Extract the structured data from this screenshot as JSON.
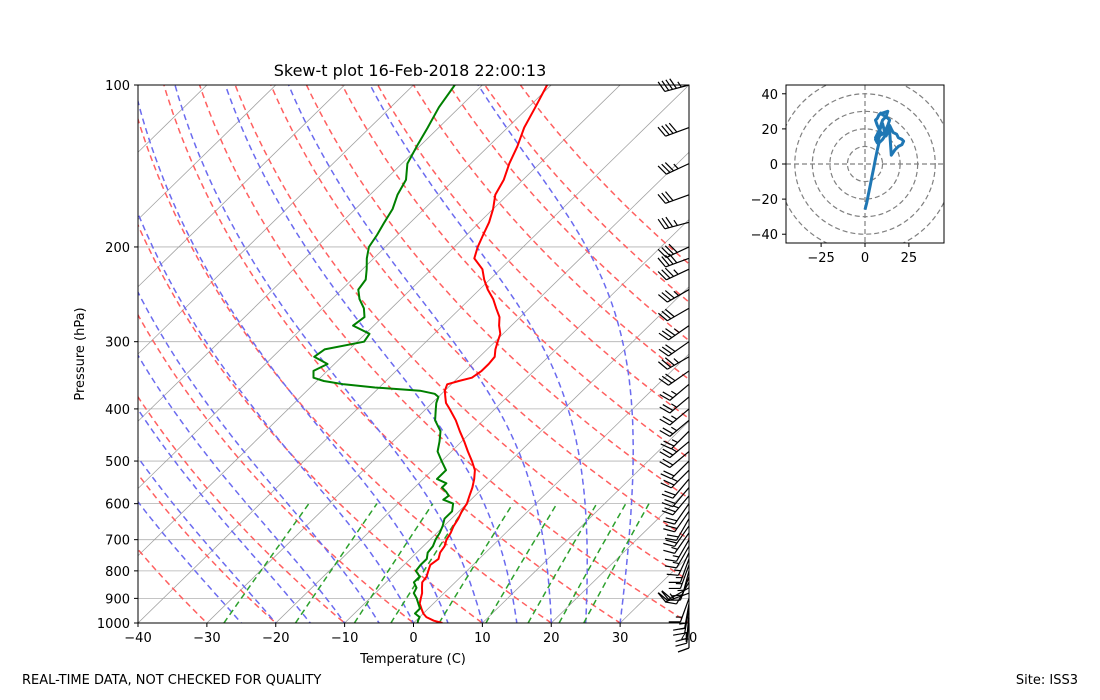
{
  "colors": {
    "temperature": "#ff0000",
    "dewpoint": "#008000",
    "dry_adiabat": "#ff6060",
    "moist_adiabat": "#6b6bef",
    "mixing_ratio": "#2ca02c",
    "hodograph": "#1f77b4",
    "grid": "#b0b0b0",
    "isotherm": "#a0a0a0"
  },
  "footer": {
    "left": "REAL-TIME DATA, NOT CHECKED FOR QUALITY",
    "right": "Site: ISS3"
  },
  "chart_data": [
    {
      "type": "line",
      "name": "skew-t",
      "title": "Skew-t plot 16-Feb-2018 22:00:13",
      "xlabel": "Temperature (C)",
      "ylabel": "Pressure (hPa)",
      "xlim": [
        -40,
        40
      ],
      "ylim": [
        1000,
        100
      ],
      "y_scale": "log",
      "x_ticks": [
        -40,
        -30,
        -20,
        -10,
        0,
        10,
        20,
        30,
        40
      ],
      "x_tick_labels": [
        "−40",
        "−30",
        "−20",
        "−10",
        "0",
        "10",
        "20",
        "30",
        "40"
      ],
      "y_ticks": [
        1000,
        900,
        800,
        700,
        600,
        500,
        400,
        300,
        200,
        100
      ],
      "y_tick_labels": [
        "1000",
        "900",
        "800",
        "700",
        "600",
        "500",
        "400",
        "300",
        "200",
        "100"
      ],
      "grid": true,
      "series": [
        {
          "name": "Temperature",
          "pressure": [
            1000,
            990,
            975,
            960,
            940,
            920,
            900,
            880,
            860,
            840,
            820,
            800,
            780,
            760,
            740,
            720,
            700,
            680,
            660,
            640,
            620,
            600,
            580,
            560,
            540,
            520,
            500,
            480,
            460,
            440,
            420,
            400,
            390,
            380,
            370,
            360,
            355,
            350,
            340,
            330,
            320,
            310,
            300,
            290,
            280,
            270,
            260,
            250,
            240,
            230,
            220,
            210,
            200,
            190,
            180,
            170,
            160,
            150,
            140,
            130,
            120,
            110,
            100
          ],
          "values": [
            4.2,
            2.6,
            1.0,
            0.0,
            -1.0,
            -2.0,
            -2.6,
            -3.2,
            -4.0,
            -4.8,
            -5.0,
            -5.6,
            -6.2,
            -5.9,
            -6.6,
            -6.9,
            -7.6,
            -8.0,
            -8.6,
            -9.0,
            -9.6,
            -10.0,
            -10.8,
            -11.6,
            -12.6,
            -13.8,
            -15.6,
            -17.6,
            -19.6,
            -21.8,
            -24.0,
            -26.6,
            -28.0,
            -29.0,
            -30.0,
            -30.6,
            -29.4,
            -28.0,
            -27.6,
            -27.6,
            -27.8,
            -28.8,
            -29.6,
            -30.4,
            -31.8,
            -33.0,
            -34.8,
            -36.6,
            -38.8,
            -40.8,
            -42.6,
            -45.4,
            -46.6,
            -47.6,
            -48.6,
            -50.0,
            -51.8,
            -52.8,
            -54.4,
            -55.8,
            -57.6,
            -59.0,
            -60.6
          ]
        },
        {
          "name": "Dewpoint",
          "pressure": [
            1000,
            990,
            975,
            960,
            940,
            920,
            900,
            880,
            860,
            840,
            820,
            800,
            780,
            760,
            740,
            720,
            700,
            680,
            660,
            640,
            620,
            600,
            590,
            580,
            570,
            560,
            550,
            540,
            520,
            500,
            480,
            460,
            440,
            420,
            400,
            390,
            380,
            375,
            370,
            365,
            360,
            355,
            350,
            340,
            330,
            320,
            310,
            300,
            290,
            280,
            270,
            260,
            250,
            240,
            230,
            220,
            210,
            200,
            190,
            180,
            170,
            160,
            150,
            140,
            130,
            120,
            110,
            100
          ],
          "values": [
            0.6,
            0.3,
            0.0,
            -1.2,
            -1.2,
            -2.2,
            -3.2,
            -4.4,
            -4.8,
            -6.0,
            -6.0,
            -7.4,
            -7.6,
            -7.6,
            -8.4,
            -8.6,
            -9.2,
            -9.6,
            -10.2,
            -11.0,
            -11.0,
            -12.0,
            -14.0,
            -13.8,
            -14.8,
            -16.0,
            -16.0,
            -18.0,
            -18.0,
            -20.0,
            -22.0,
            -23.2,
            -24.6,
            -27.0,
            -28.6,
            -29.4,
            -30.0,
            -31.0,
            -33.6,
            -40.6,
            -45.6,
            -49.0,
            -51.0,
            -52.0,
            -51.0,
            -54.0,
            -53.6,
            -49.0,
            -49.4,
            -53.0,
            -52.6,
            -54.0,
            -56.0,
            -57.6,
            -58.0,
            -59.4,
            -61.0,
            -62.4,
            -63.0,
            -63.8,
            -64.6,
            -66.0,
            -67.0,
            -69.2,
            -70.4,
            -71.6,
            -73.0,
            -74.0
          ]
        }
      ],
      "reference_lines": {
        "isotherms": [
          -120,
          -110,
          -100,
          -90,
          -80,
          -70,
          -60,
          -50,
          -40,
          -30,
          -20,
          -10,
          0,
          10,
          20,
          30,
          40
        ],
        "dry_adiabats_C": [
          -30,
          -20,
          -10,
          0,
          10,
          20,
          30,
          40,
          50,
          60,
          70,
          80,
          90,
          100,
          110,
          120,
          130
        ],
        "moist_adiabats_C": [
          -25,
          -20,
          -15,
          -10,
          -5,
          0,
          5,
          10,
          15,
          20,
          25,
          30
        ],
        "mixing_ratios_gkg": [
          0.4,
          1,
          2,
          3,
          5,
          8,
          12,
          16,
          20
        ],
        "mixing_ratio_top_hPa": 600
      },
      "wind_barbs": {
        "pressure": [
          100,
          120,
          140,
          160,
          180,
          200,
          210,
          220,
          240,
          260,
          280,
          300,
          320,
          340,
          360,
          380,
          400,
          420,
          440,
          460,
          480,
          500,
          520,
          540,
          560,
          580,
          600,
          620,
          640,
          660,
          680,
          700,
          720,
          740,
          760,
          780,
          800,
          820,
          840,
          860,
          880,
          900,
          920,
          940,
          960,
          980,
          1000
        ],
        "speed_kt": [
          45,
          40,
          35,
          30,
          35,
          40,
          40,
          35,
          35,
          30,
          35,
          30,
          35,
          30,
          25,
          25,
          25,
          25,
          25,
          25,
          20,
          20,
          25,
          20,
          20,
          25,
          20,
          20,
          20,
          20,
          15,
          15,
          15,
          15,
          15,
          15,
          15,
          10,
          10,
          20,
          25,
          15,
          15,
          15,
          10,
          10,
          10
        ],
        "direction_deg": [
          255,
          250,
          245,
          250,
          255,
          245,
          250,
          245,
          240,
          240,
          235,
          235,
          240,
          235,
          230,
          230,
          230,
          230,
          225,
          230,
          230,
          225,
          225,
          220,
          220,
          220,
          215,
          215,
          210,
          215,
          215,
          210,
          210,
          205,
          200,
          200,
          195,
          200,
          210,
          240,
          250,
          200,
          190,
          190,
          185,
          185,
          180
        ]
      }
    },
    {
      "type": "line",
      "name": "hodograph",
      "xlim": [
        -45,
        45
      ],
      "ylim": [
        -45,
        45
      ],
      "x_ticks": [
        -25,
        0,
        25
      ],
      "x_tick_labels": [
        "−25",
        "0",
        "25"
      ],
      "y_ticks": [
        -40,
        -20,
        0,
        20,
        40
      ],
      "y_tick_labels": [
        "−40",
        "−20",
        "0",
        "20",
        "40"
      ],
      "rings": [
        10,
        20,
        30,
        40,
        50
      ],
      "u": [
        0,
        1,
        2,
        3,
        4,
        5,
        6,
        7,
        8,
        10,
        12,
        14,
        15,
        17,
        19,
        21,
        22,
        21,
        19,
        18,
        16,
        15,
        14,
        13,
        12,
        11,
        10,
        9,
        8,
        7,
        6,
        7,
        8,
        9,
        11,
        12,
        13,
        14,
        12,
        10,
        9,
        8,
        7,
        6,
        7,
        8,
        9,
        10,
        8,
        6,
        7,
        8,
        9,
        10,
        12,
        13,
        10,
        8,
        7
      ],
      "v": [
        -26,
        -22,
        -17,
        -12,
        -7,
        -2,
        3,
        8,
        12,
        14,
        17,
        19,
        5,
        8,
        10,
        11,
        13,
        14,
        15,
        17,
        18,
        20,
        22,
        18,
        16,
        19,
        23,
        21,
        18,
        16,
        14,
        12,
        15,
        18,
        17,
        20,
        22,
        25,
        27,
        28,
        29,
        28,
        26,
        25,
        22,
        20,
        18,
        17,
        16,
        15,
        17,
        19,
        22,
        25,
        27,
        30,
        29,
        28,
        26
      ]
    }
  ]
}
